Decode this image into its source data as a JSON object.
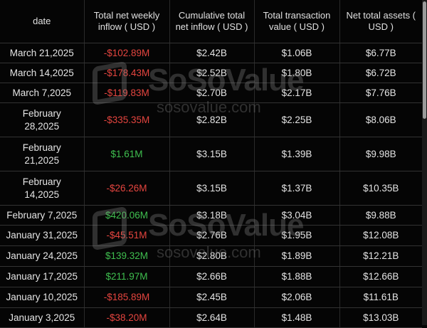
{
  "table": {
    "headers": [
      "date",
      "Total net weekly inflow ( USD )",
      "Cumulative total net inflow ( USD )",
      "Total transaction value ( USD )",
      "Net total assets ( USD )"
    ],
    "rows": [
      {
        "date": "March 21,2025",
        "weekly": "-$102.89M",
        "sign": "neg",
        "cumulative": "$2.42B",
        "transaction": "$1.06B",
        "assets": "$6.77B"
      },
      {
        "date": "March 14,2025",
        "weekly": "-$178.43M",
        "sign": "neg",
        "cumulative": "$2.52B",
        "transaction": "$1.80B",
        "assets": "$6.72B"
      },
      {
        "date": "March 7,2025",
        "weekly": "-$119.83M",
        "sign": "neg",
        "cumulative": "$2.70B",
        "transaction": "$2.17B",
        "assets": "$7.76B"
      },
      {
        "date": "February 28,2025",
        "weekly": "-$335.35M",
        "sign": "neg",
        "cumulative": "$2.82B",
        "transaction": "$2.25B",
        "assets": "$8.06B"
      },
      {
        "date": "February 21,2025",
        "weekly": "$1.61M",
        "sign": "pos",
        "cumulative": "$3.15B",
        "transaction": "$1.39B",
        "assets": "$9.98B"
      },
      {
        "date": "February 14,2025",
        "weekly": "-$26.26M",
        "sign": "neg",
        "cumulative": "$3.15B",
        "transaction": "$1.37B",
        "assets": "$10.35B"
      },
      {
        "date": "February 7,2025",
        "weekly": "$420.06M",
        "sign": "pos",
        "cumulative": "$3.18B",
        "transaction": "$3.04B",
        "assets": "$9.88B"
      },
      {
        "date": "January 31,2025",
        "weekly": "-$45.51M",
        "sign": "neg",
        "cumulative": "$2.76B",
        "transaction": "$1.95B",
        "assets": "$12.08B"
      },
      {
        "date": "January 24,2025",
        "weekly": "$139.32M",
        "sign": "pos",
        "cumulative": "$2.80B",
        "transaction": "$1.89B",
        "assets": "$12.21B"
      },
      {
        "date": "January 17,2025",
        "weekly": "$211.97M",
        "sign": "pos",
        "cumulative": "$2.66B",
        "transaction": "$1.88B",
        "assets": "$12.66B"
      },
      {
        "date": "January 10,2025",
        "weekly": "-$185.89M",
        "sign": "neg",
        "cumulative": "$2.45B",
        "transaction": "$2.06B",
        "assets": "$11.61B"
      },
      {
        "date": "January 3,2025",
        "weekly": "-$38.20M",
        "sign": "neg",
        "cumulative": "$2.64B",
        "transaction": "$1.48B",
        "assets": "$13.03B"
      }
    ]
  },
  "watermark": {
    "brand": "SoSoValue",
    "site": "sosovalue.com"
  },
  "colors": {
    "negative": "#e5453f",
    "positive": "#3fbf4f",
    "background": "#050505"
  }
}
